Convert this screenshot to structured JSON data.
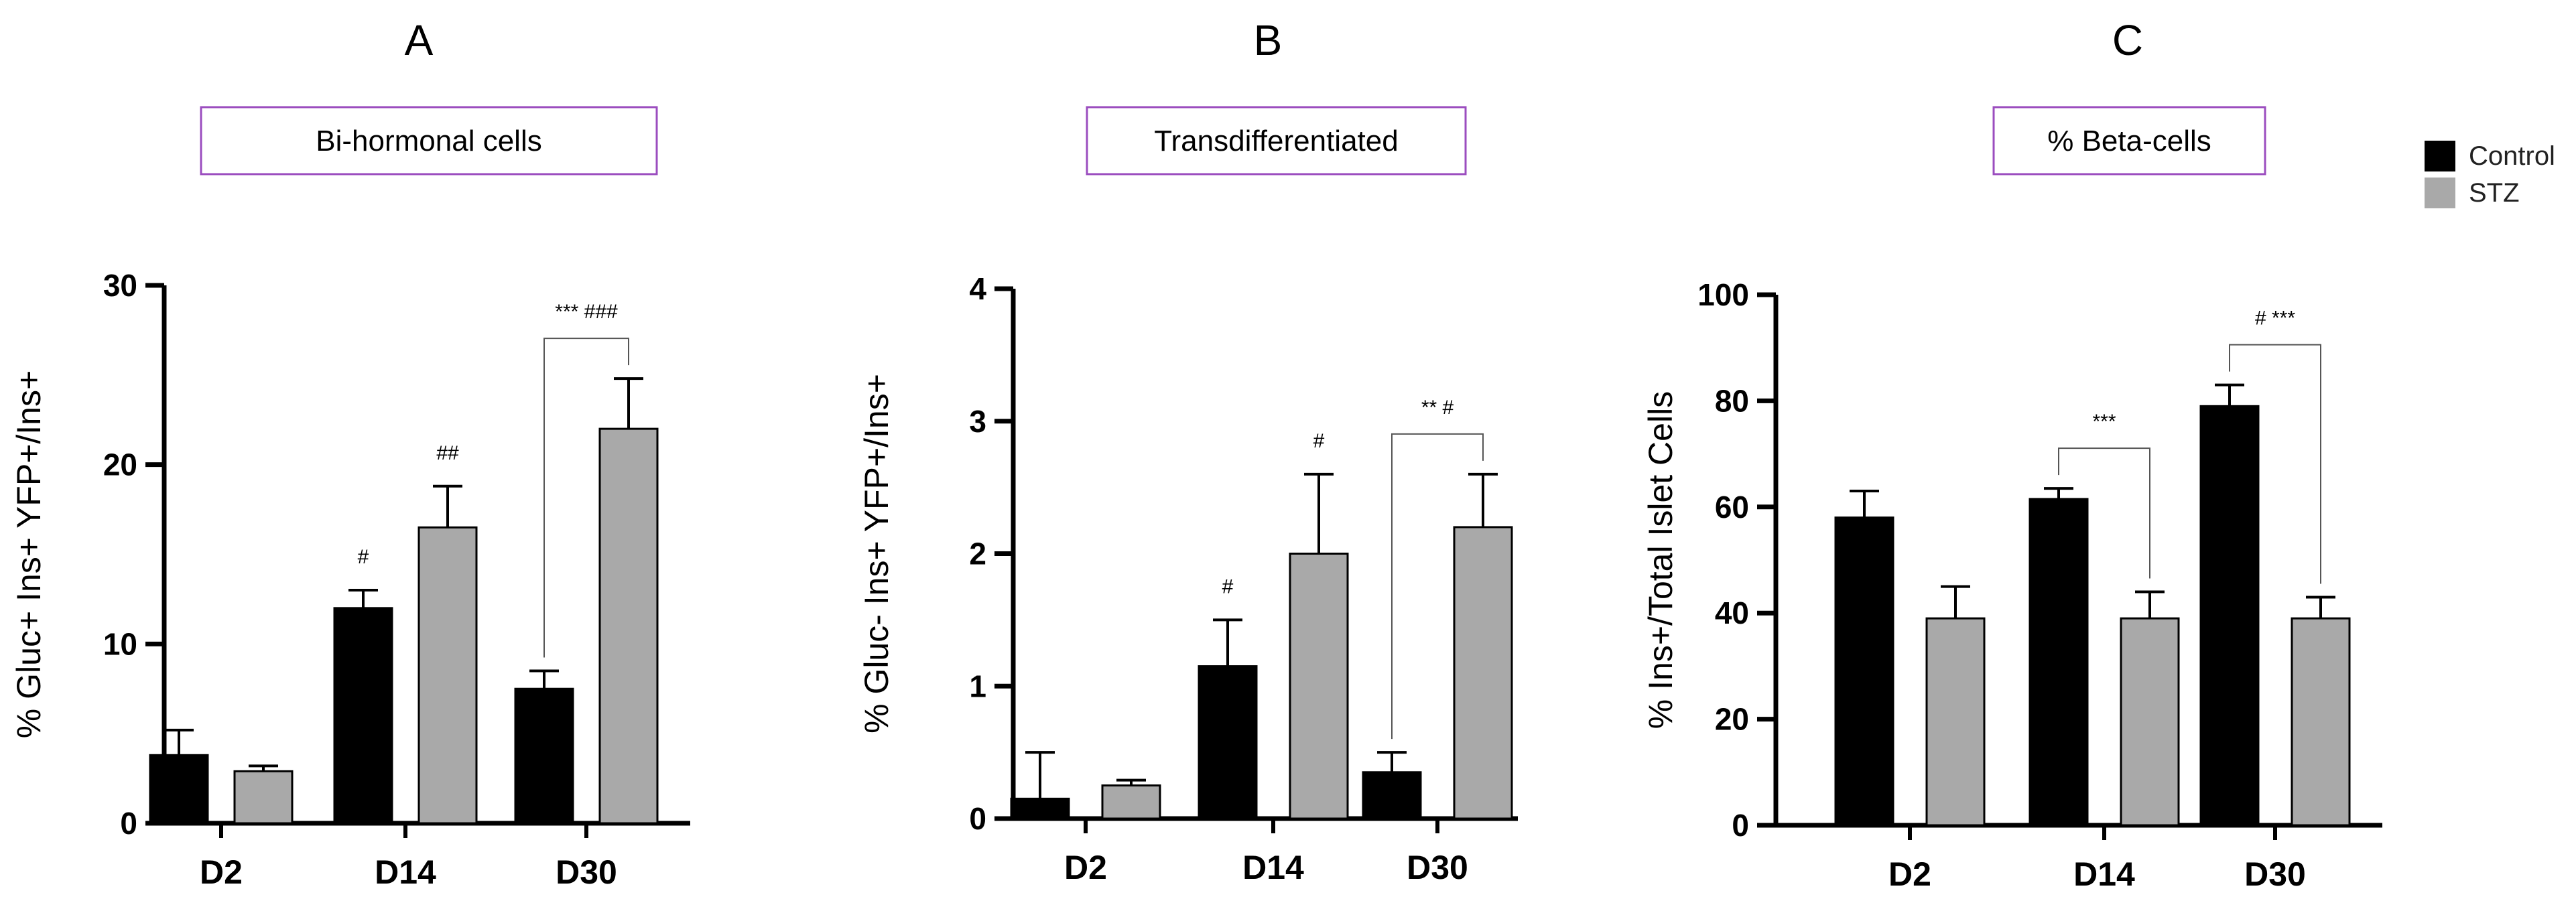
{
  "chart_data": [
    {
      "type": "bar",
      "panel": "A",
      "title": "Bi-hormonal cells",
      "ylabel": "% Gluc+ Ins+ YFP+/Ins+",
      "ylim": [
        0,
        30
      ],
      "yticks": [
        "0",
        "10",
        "20",
        "30"
      ],
      "categories": [
        "D2",
        "D14",
        "D30"
      ],
      "series": [
        {
          "name": "Control",
          "color": "#000000",
          "values": [
            3.8,
            12.0,
            7.5
          ],
          "errors": [
            1.4,
            1.0,
            1.0
          ]
        },
        {
          "name": "STZ",
          "color": "#a9a9a9",
          "values": [
            2.9,
            16.5,
            22.0
          ],
          "errors": [
            0.3,
            2.3,
            2.8
          ]
        }
      ],
      "annotations": [
        {
          "text": "#",
          "category": "D14",
          "series": "Control"
        },
        {
          "text": "##",
          "category": "D14",
          "series": "STZ"
        },
        {
          "text": "*** ###",
          "category": "D30",
          "bracket": true
        }
      ]
    },
    {
      "type": "bar",
      "panel": "B",
      "title": "Transdifferentiated",
      "ylabel": "% Gluc- Ins+ YFP+/Ins+",
      "ylim": [
        0,
        4
      ],
      "yticks": [
        "0",
        "1",
        "2",
        "3",
        "4"
      ],
      "categories": [
        "D2",
        "D14",
        "D30"
      ],
      "series": [
        {
          "name": "Control",
          "color": "#000000",
          "values": [
            0.15,
            1.15,
            0.35
          ],
          "errors": [
            0.35,
            0.35,
            0.15
          ]
        },
        {
          "name": "STZ",
          "color": "#a9a9a9",
          "values": [
            0.25,
            2.0,
            2.2
          ],
          "errors": [
            0.04,
            0.6,
            0.4
          ]
        }
      ],
      "annotations": [
        {
          "text": "#",
          "category": "D14",
          "series": "Control"
        },
        {
          "text": "#",
          "category": "D14",
          "series": "STZ"
        },
        {
          "text": "** #",
          "category": "D30",
          "bracket": true
        }
      ]
    },
    {
      "type": "bar",
      "panel": "C",
      "title": "% Beta-cells",
      "ylabel": "% Ins+/Total Islet Cells",
      "ylim": [
        0,
        100
      ],
      "yticks": [
        "0",
        "20",
        "40",
        "60",
        "80",
        "100"
      ],
      "categories": [
        "D2",
        "D14",
        "D30"
      ],
      "series": [
        {
          "name": "Control",
          "color": "#000000",
          "values": [
            58,
            61.5,
            79
          ],
          "errors": [
            5,
            2,
            4
          ]
        },
        {
          "name": "STZ",
          "color": "#a9a9a9",
          "values": [
            39,
            39,
            39
          ],
          "errors": [
            6,
            5,
            4
          ]
        }
      ],
      "annotations": [
        {
          "text": "***",
          "category": "D14",
          "bracket": true
        },
        {
          "text": "# ***",
          "category": "D30",
          "bracket": true
        }
      ]
    }
  ],
  "legend": [
    {
      "label": "Control",
      "color": "#000000"
    },
    {
      "label": "STZ",
      "color": "#a9a9a9"
    }
  ]
}
